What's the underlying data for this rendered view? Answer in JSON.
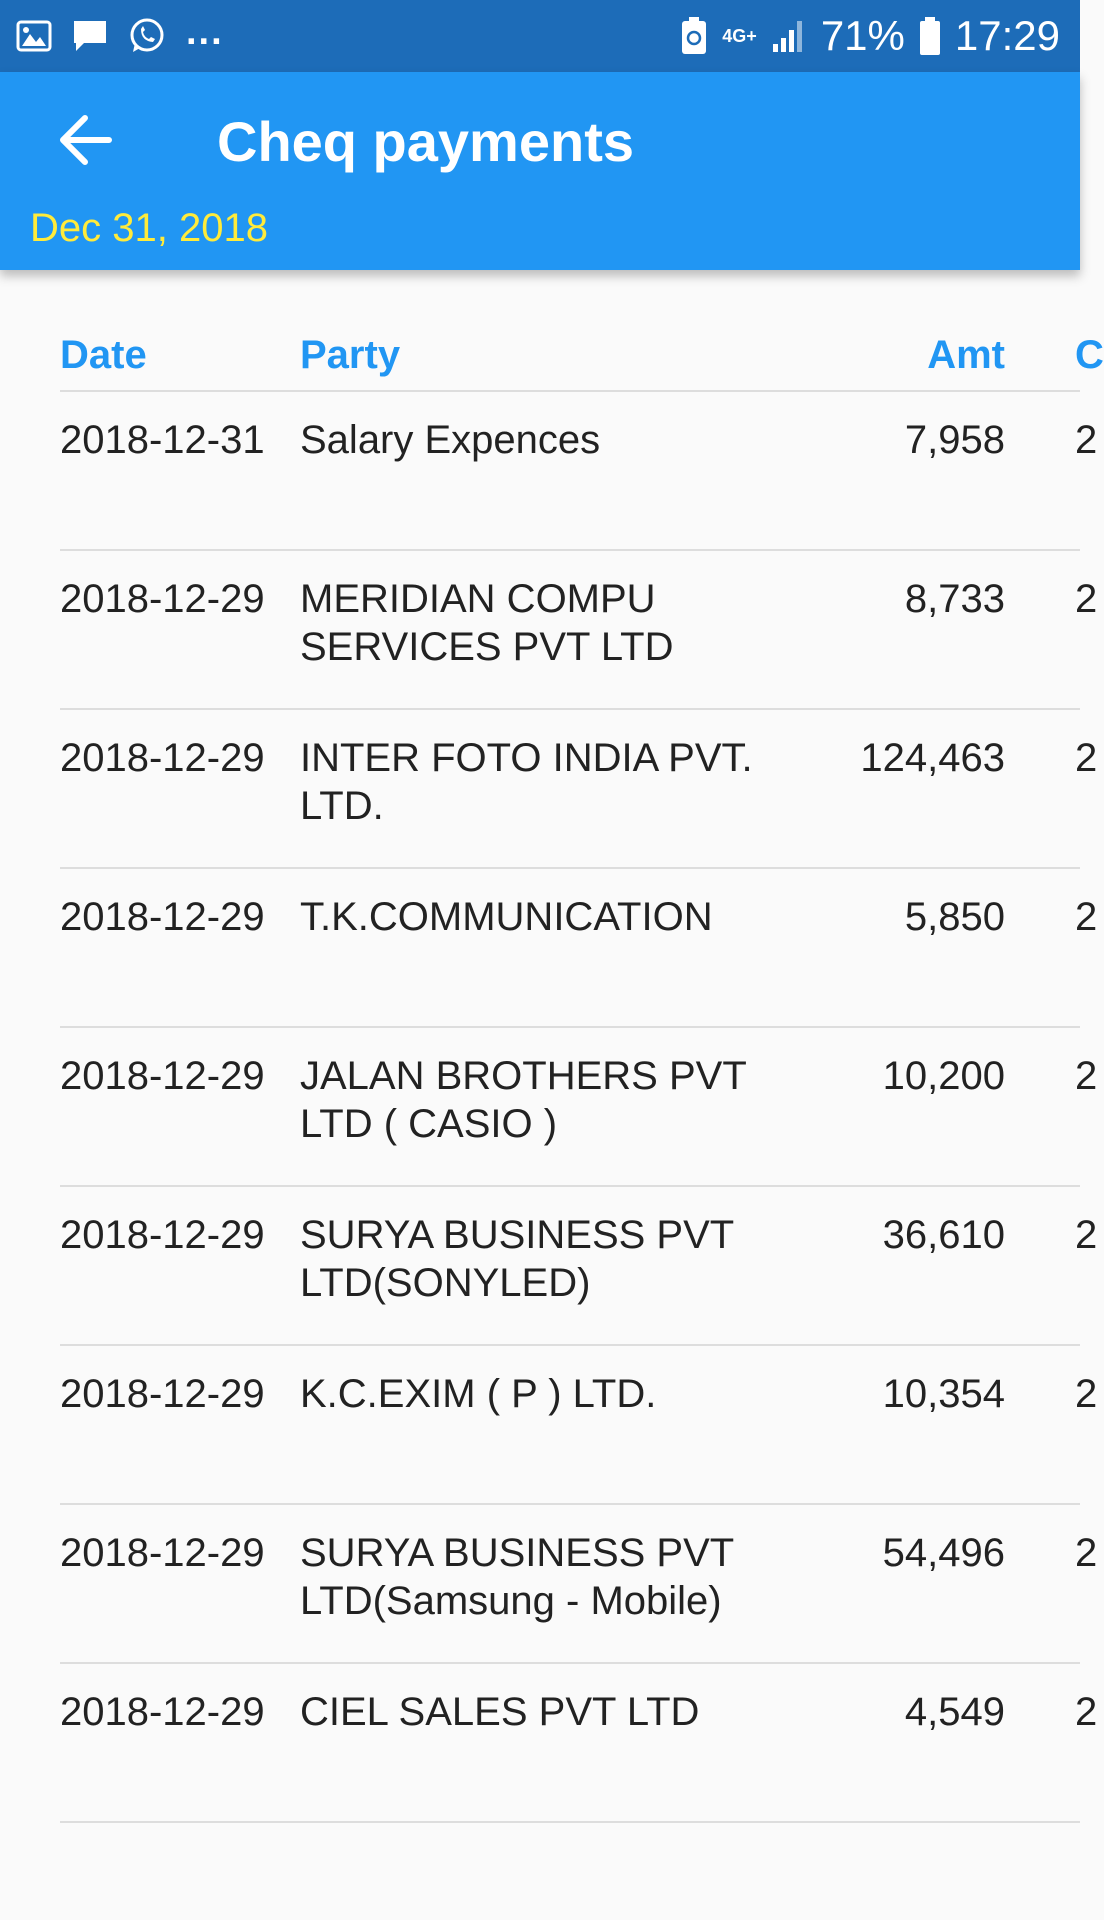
{
  "status_bar": {
    "left_icons": [
      "image-icon",
      "message-icon",
      "whatsapp-icon"
    ],
    "more": "...",
    "network": "4G+",
    "battery": "71%",
    "time": "17:29"
  },
  "app_bar": {
    "title": "Cheq payments",
    "date": "Dec 31, 2018",
    "back_icon": "arrow-left-icon"
  },
  "table": {
    "headers": {
      "date": "Date",
      "party": "Party",
      "amt": "Amt",
      "extra": "C"
    },
    "rows": [
      {
        "date": "2018-12-31",
        "party": "Salary Expences",
        "amt": "7,958",
        "extra": "2"
      },
      {
        "date": "2018-12-29",
        "party": "MERIDIAN COMPU SERVICES PVT LTD",
        "amt": "8,733",
        "extra": "2"
      },
      {
        "date": "2018-12-29",
        "party": "INTER FOTO INDIA PVT. LTD.",
        "amt": "124,463",
        "extra": "2"
      },
      {
        "date": "2018-12-29",
        "party": "T.K.COMMUNICATION",
        "amt": "5,850",
        "extra": "2"
      },
      {
        "date": "2018-12-29",
        "party": "JALAN BROTHERS PVT LTD  ( CASIO )",
        "amt": "10,200",
        "extra": "2"
      },
      {
        "date": "2018-12-29",
        "party": "SURYA BUSINESS PVT LTD(SONYLED)",
        "amt": "36,610",
        "extra": "2"
      },
      {
        "date": "2018-12-29",
        "party": "K.C.EXIM ( P ) LTD.",
        "amt": "10,354",
        "extra": "2"
      },
      {
        "date": "2018-12-29",
        "party": "SURYA BUSINESS PVT LTD(Samsung - Mobile)",
        "amt": "54,496",
        "extra": "2"
      },
      {
        "date": "2018-12-29",
        "party": "CIEL SALES PVT LTD",
        "amt": "4,549",
        "extra": "2"
      }
    ]
  },
  "colors": {
    "status_bar": "#1d6cb8",
    "app_bar": "#2196f3",
    "date_text": "#ffeb3b",
    "header_text": "#2196f3"
  }
}
